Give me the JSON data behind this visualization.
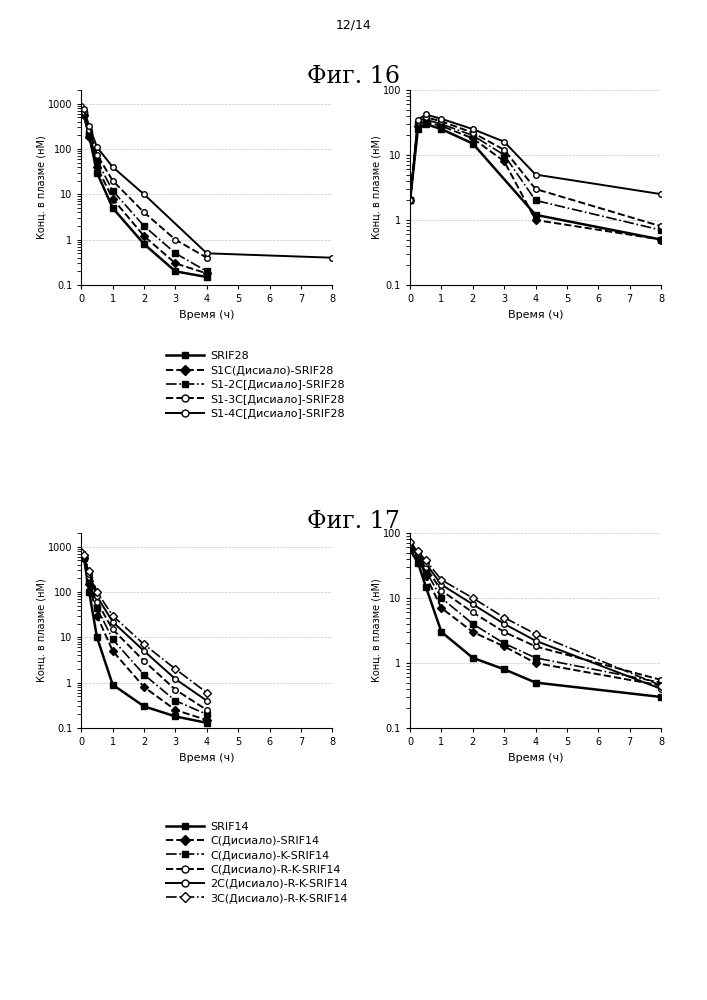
{
  "fig16_title": "Фиг. 16",
  "fig17_title": "Фиг. 17",
  "page_label": "12/14",
  "ylabel": "Конц. в плазме (нМ)",
  "xlabel": "Время (ч)",
  "fig16": {
    "series": [
      {
        "label": "SRIF28",
        "linestyle": "-",
        "marker": "s",
        "markerfill": "black",
        "color": "black",
        "lw": 1.8,
        "x_left": [
          0,
          0.08,
          0.25,
          0.5,
          1,
          2,
          3,
          4
        ],
        "y_left": [
          700,
          600,
          200,
          30,
          5,
          0.8,
          0.2,
          0.15
        ],
        "x_right": [
          0,
          0.25,
          0.5,
          1,
          2,
          4,
          8
        ],
        "y_right": [
          2,
          25,
          30,
          25,
          15,
          1.2,
          0.5
        ]
      },
      {
        "label": "S1C(Дисиало)-SRIF28",
        "linestyle": "--",
        "marker": "D",
        "markerfill": "black",
        "color": "black",
        "lw": 1.4,
        "x_left": [
          0,
          0.08,
          0.25,
          0.5,
          1,
          2,
          3,
          4
        ],
        "y_left": [
          700,
          550,
          180,
          40,
          8,
          1.2,
          0.3,
          0.18
        ],
        "x_right": [
          0,
          0.25,
          0.5,
          1,
          2,
          3,
          4,
          8
        ],
        "y_right": [
          2,
          28,
          32,
          28,
          18,
          8,
          1.0,
          0.5
        ]
      },
      {
        "label": "S1-2C[Дисиало]-SRIF28",
        "linestyle": "-.",
        "marker": "s",
        "markerfill": "black",
        "color": "black",
        "lw": 1.2,
        "x_left": [
          0,
          0.08,
          0.25,
          0.5,
          1,
          2,
          3,
          4
        ],
        "y_left": [
          750,
          600,
          220,
          55,
          12,
          2,
          0.5,
          0.2
        ],
        "x_right": [
          0,
          0.25,
          0.5,
          1,
          2,
          3,
          4,
          8
        ],
        "y_right": [
          2,
          30,
          35,
          30,
          20,
          10,
          2,
          0.7
        ]
      },
      {
        "label": "S1-3C[Дисиало]-SRIF28",
        "linestyle": "--",
        "marker": "o",
        "markerfill": "white",
        "color": "black",
        "lw": 1.4,
        "x_left": [
          0,
          0.08,
          0.25,
          0.5,
          1,
          2,
          3,
          4
        ],
        "y_left": [
          800,
          650,
          260,
          75,
          20,
          4,
          1,
          0.4
        ],
        "x_right": [
          0,
          0.25,
          0.5,
          1,
          2,
          3,
          4,
          8
        ],
        "y_right": [
          2,
          32,
          38,
          33,
          22,
          12,
          3,
          0.8
        ]
      },
      {
        "label": "S1-4C[Дисиало]-SRIF28",
        "linestyle": "-",
        "marker": "o",
        "markerfill": "white",
        "color": "black",
        "lw": 1.4,
        "x_left": [
          0,
          0.08,
          0.25,
          0.5,
          1,
          2,
          4,
          8
        ],
        "y_left": [
          900,
          750,
          320,
          110,
          40,
          10,
          0.5,
          0.4
        ],
        "x_right": [
          0,
          0.25,
          0.5,
          1,
          2,
          3,
          4,
          8
        ],
        "y_right": [
          2,
          35,
          42,
          36,
          25,
          16,
          5,
          2.5
        ]
      }
    ],
    "left_ylim": [
      0.1,
      2000
    ],
    "right_ylim": [
      0.1,
      100
    ],
    "xlim": [
      0,
      8
    ]
  },
  "fig17": {
    "series": [
      {
        "label": "SRIF14",
        "linestyle": "-",
        "marker": "s",
        "markerfill": "black",
        "color": "black",
        "lw": 1.8,
        "x_left": [
          0,
          0.08,
          0.25,
          0.5,
          1,
          2,
          3,
          4
        ],
        "y_left": [
          700,
          600,
          100,
          10,
          0.9,
          0.3,
          0.18,
          0.13
        ],
        "x_right": [
          0,
          0.25,
          0.5,
          1,
          2,
          3,
          4,
          8
        ],
        "y_right": [
          55,
          35,
          15,
          3,
          1.2,
          0.8,
          0.5,
          0.3
        ]
      },
      {
        "label": "C(Дисиало)-SRIF14",
        "linestyle": "--",
        "marker": "D",
        "markerfill": "black",
        "color": "black",
        "lw": 1.4,
        "x_left": [
          0,
          0.08,
          0.25,
          0.5,
          1,
          2,
          3,
          4
        ],
        "y_left": [
          650,
          550,
          150,
          30,
          5,
          0.8,
          0.25,
          0.15
        ],
        "x_right": [
          0,
          0.25,
          0.5,
          1,
          2,
          3,
          4,
          8
        ],
        "y_right": [
          60,
          42,
          22,
          7,
          3,
          1.8,
          1.0,
          0.45
        ]
      },
      {
        "label": "C(Дисиало)-K-SRIF14",
        "linestyle": "-.",
        "marker": "s",
        "markerfill": "black",
        "color": "black",
        "lw": 1.2,
        "x_left": [
          0,
          0.08,
          0.25,
          0.5,
          1,
          2,
          3,
          4
        ],
        "y_left": [
          680,
          570,
          180,
          45,
          9,
          1.5,
          0.4,
          0.2
        ],
        "x_right": [
          0,
          0.25,
          0.5,
          1,
          2,
          3,
          4,
          8
        ],
        "y_right": [
          62,
          45,
          26,
          10,
          4,
          2,
          1.2,
          0.5
        ]
      },
      {
        "label": "C(Дисиало)-R-K-SRIF14",
        "linestyle": "--",
        "marker": "o",
        "markerfill": "white",
        "color": "black",
        "lw": 1.4,
        "x_left": [
          0,
          0.08,
          0.25,
          0.5,
          1,
          2,
          3,
          4
        ],
        "y_left": [
          700,
          600,
          210,
          60,
          15,
          3,
          0.7,
          0.25
        ],
        "x_right": [
          0,
          0.25,
          0.5,
          1,
          2,
          3,
          4,
          8
        ],
        "y_right": [
          65,
          48,
          30,
          13,
          6,
          3,
          1.8,
          0.55
        ]
      },
      {
        "label": "2C(Дисиало)-R-K-SRIF14",
        "linestyle": "-",
        "marker": "o",
        "markerfill": "white",
        "color": "black",
        "lw": 1.4,
        "x_left": [
          0,
          0.08,
          0.25,
          0.5,
          1,
          2,
          3,
          4
        ],
        "y_left": [
          730,
          630,
          250,
          80,
          22,
          5,
          1.2,
          0.4
        ],
        "x_right": [
          0,
          0.25,
          0.5,
          1,
          2,
          3,
          4,
          8
        ],
        "y_right": [
          68,
          50,
          34,
          16,
          8,
          4,
          2.2,
          0.4
        ]
      },
      {
        "label": "3C(Дисиало)-R-K-SRIF14",
        "linestyle": "-.",
        "marker": "D",
        "markerfill": "white",
        "color": "black",
        "lw": 1.2,
        "x_left": [
          0,
          0.08,
          0.25,
          0.5,
          1,
          2,
          3,
          4
        ],
        "y_left": [
          760,
          660,
          290,
          100,
          30,
          7,
          2,
          0.6
        ],
        "x_right": [
          0,
          0.25,
          0.5,
          1,
          2,
          3,
          4,
          8
        ],
        "y_right": [
          72,
          52,
          38,
          19,
          10,
          5,
          2.8,
          0.45
        ]
      }
    ],
    "left_ylim": [
      0.1,
      2000
    ],
    "right_ylim": [
      0.1,
      100
    ],
    "xlim": [
      0,
      8
    ]
  }
}
